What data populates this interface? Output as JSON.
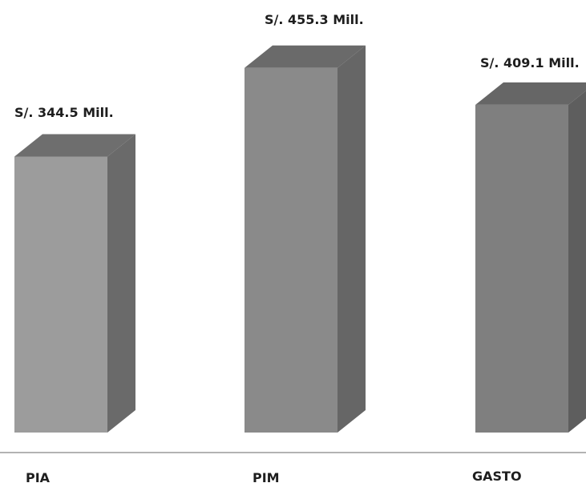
{
  "chart_data": {
    "type": "bar",
    "style": "3d-column",
    "categories": [
      "PIA",
      "PIM",
      "GASTO"
    ],
    "values": [
      344.5,
      455.3,
      409.1
    ],
    "data_labels": [
      "S/. 344.5 Mill.",
      "S/. 455.3 Mill.",
      "S/. 409.1 Mill."
    ],
    "title": "",
    "xlabel": "",
    "ylabel": "",
    "grid": false,
    "legend": "none",
    "colors": {
      "bars": [
        "#9c9c9c",
        "#8a8a8a",
        "#7f7f7f"
      ],
      "tops": [
        "#6e6e6e",
        "#6a6a6a",
        "#666666"
      ],
      "sides": [
        "#6a6a6a",
        "#666666",
        "#5e5e5e"
      ],
      "baseline": "#9a9a9a",
      "text": "#1e1e1e"
    }
  }
}
